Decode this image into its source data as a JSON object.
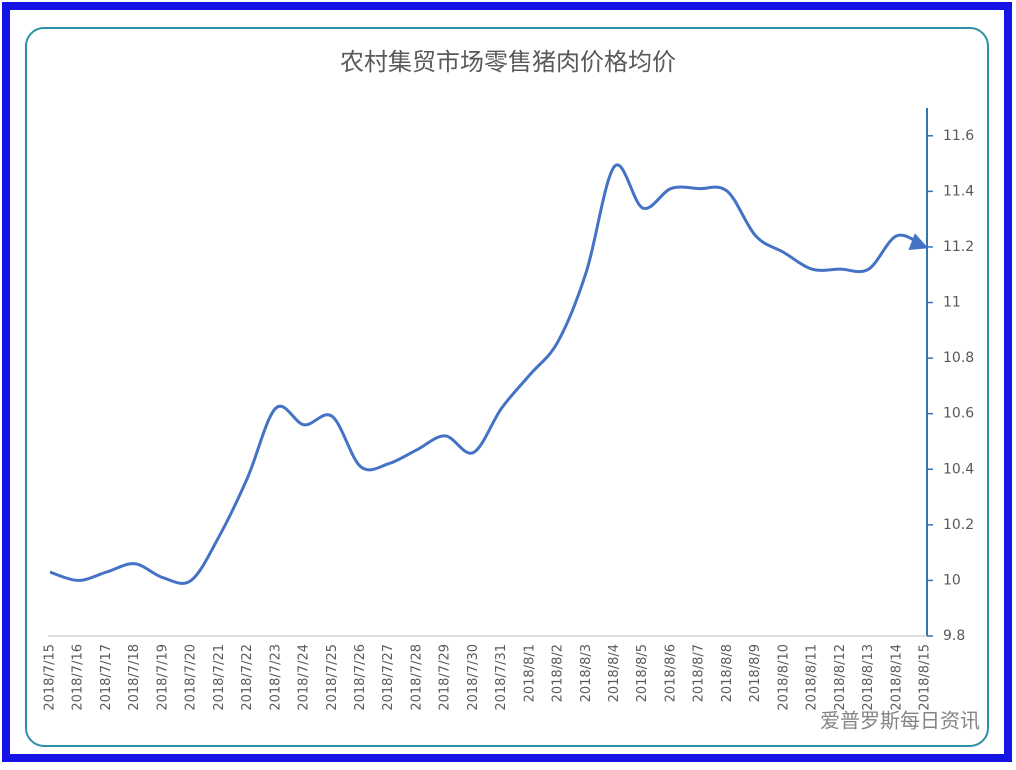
{
  "chart_data": {
    "type": "line",
    "title": "农村集贸市场零售猪肉价格均价",
    "categories": [
      "2018/7/15",
      "2018/7/16",
      "2018/7/17",
      "2018/7/18",
      "2018/7/19",
      "2018/7/20",
      "2018/7/21",
      "2018/7/22",
      "2018/7/23",
      "2018/7/24",
      "2018/7/25",
      "2018/7/26",
      "2018/7/27",
      "2018/7/28",
      "2018/7/29",
      "2018/7/30",
      "2018/7/31",
      "2018/8/1",
      "2018/8/2",
      "2018/8/3",
      "2018/8/4",
      "2018/8/5",
      "2018/8/6",
      "2018/8/7",
      "2018/8/8",
      "2018/8/9",
      "2018/8/10",
      "2018/8/11",
      "2018/8/12",
      "2018/8/13",
      "2018/8/14",
      "2018/8/15"
    ],
    "values": [
      10.03,
      10.0,
      10.03,
      10.06,
      10.01,
      10.0,
      10.16,
      10.37,
      10.62,
      10.56,
      10.59,
      10.41,
      10.42,
      10.47,
      10.52,
      10.46,
      10.62,
      10.74,
      10.86,
      11.11,
      11.49,
      11.34,
      11.41,
      11.41,
      11.4,
      11.24,
      11.18,
      11.12,
      11.12,
      11.12,
      11.24,
      11.2
    ],
    "color": "#4472c4",
    "ylim": [
      9.8,
      11.7
    ],
    "yticks": [
      9.8,
      10,
      10.2,
      10.4,
      10.6,
      10.8,
      11,
      11.2,
      11.4,
      11.6
    ],
    "y_axis_side": "right",
    "grid": false,
    "watermark": "爱普罗斯每日资讯"
  }
}
